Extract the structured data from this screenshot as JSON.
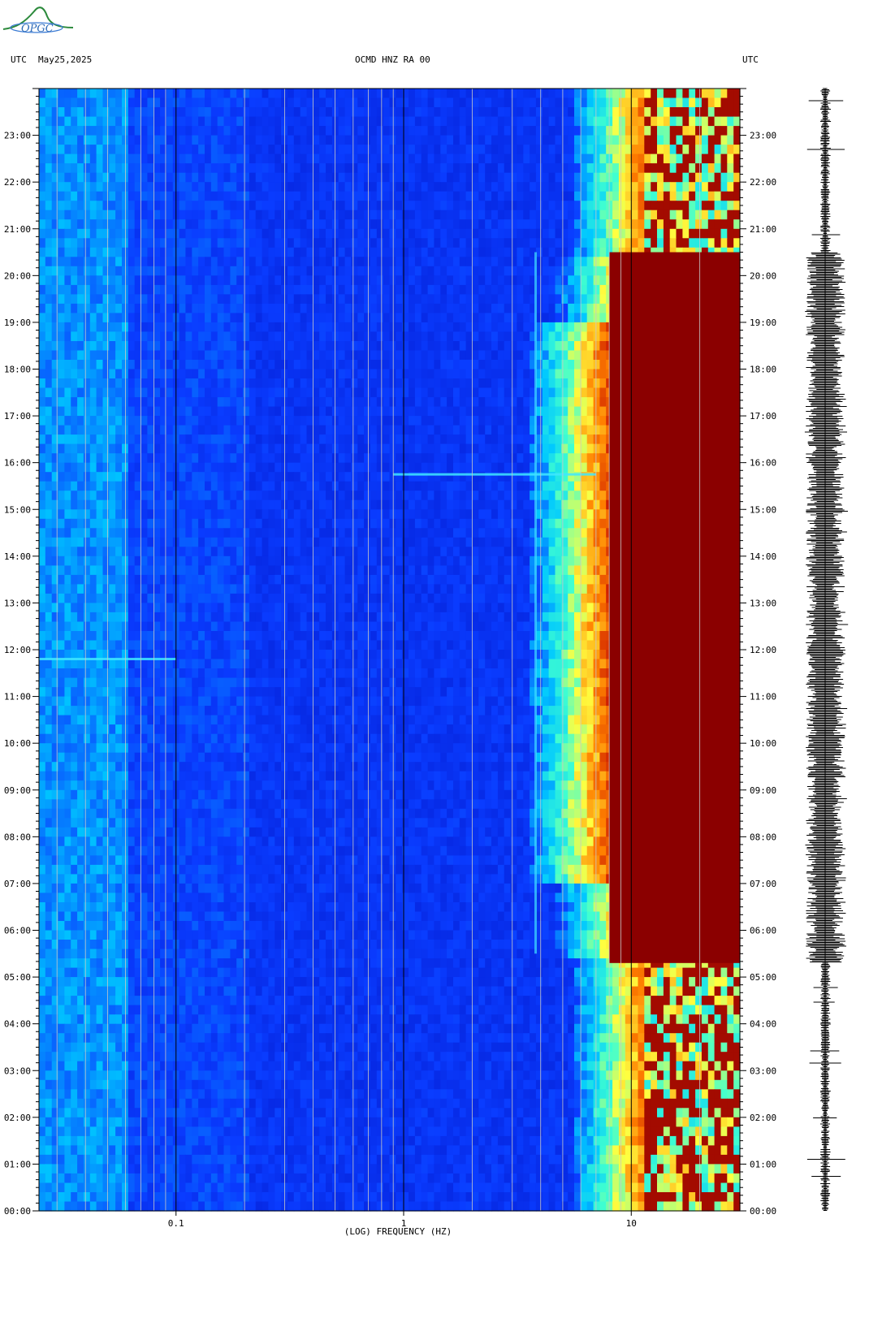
{
  "header": {
    "left_tz": "UTC",
    "date": "May25,2025",
    "station": "OCMD HNZ RA 00",
    "right_tz": "UTC"
  },
  "logo": {
    "text": "OPGC"
  },
  "chart_data": {
    "type": "heatmap",
    "title": "OCMD HNZ RA 00",
    "xlabel": "(LOG) FREQUENCY (HZ)",
    "x_scale": "log",
    "xlim": [
      0.025,
      30
    ],
    "x_ticks": [
      {
        "value": 0.1,
        "label": "0.1"
      },
      {
        "value": 1,
        "label": "1"
      },
      {
        "value": 10,
        "label": "10"
      }
    ],
    "y_ticks": [
      "23:00",
      "22:00",
      "21:00",
      "20:00",
      "19:00",
      "18:00",
      "17:00",
      "16:00",
      "15:00",
      "14:00",
      "13:00",
      "12:00",
      "11:00",
      "10:00",
      "09:00",
      "08:00",
      "07:00",
      "06:00",
      "05:00",
      "04:00",
      "03:00",
      "02:00",
      "01:00",
      "00:00"
    ],
    "ylim_hours": [
      0,
      24
    ],
    "colormap": [
      "#0000aa",
      "#0a3cff",
      "#00c8ff",
      "#40ffd0",
      "#ffff40",
      "#ff8000",
      "#d02000",
      "#8b0000"
    ],
    "features": [
      {
        "kind": "saturated_band",
        "freq_start_hz": 8,
        "hours": [
          5.3,
          20.5
        ],
        "color": "#8b0000"
      },
      {
        "kind": "event_line",
        "hour": 15.75,
        "freq_range_hz": [
          0.9,
          7
        ]
      },
      {
        "kind": "event_line",
        "hour": 11.8,
        "freq_range_hz": [
          0.025,
          0.1
        ]
      },
      {
        "kind": "spectral_line",
        "freq_hz": 3.8,
        "hours": [
          5.5,
          20.5
        ]
      }
    ]
  }
}
